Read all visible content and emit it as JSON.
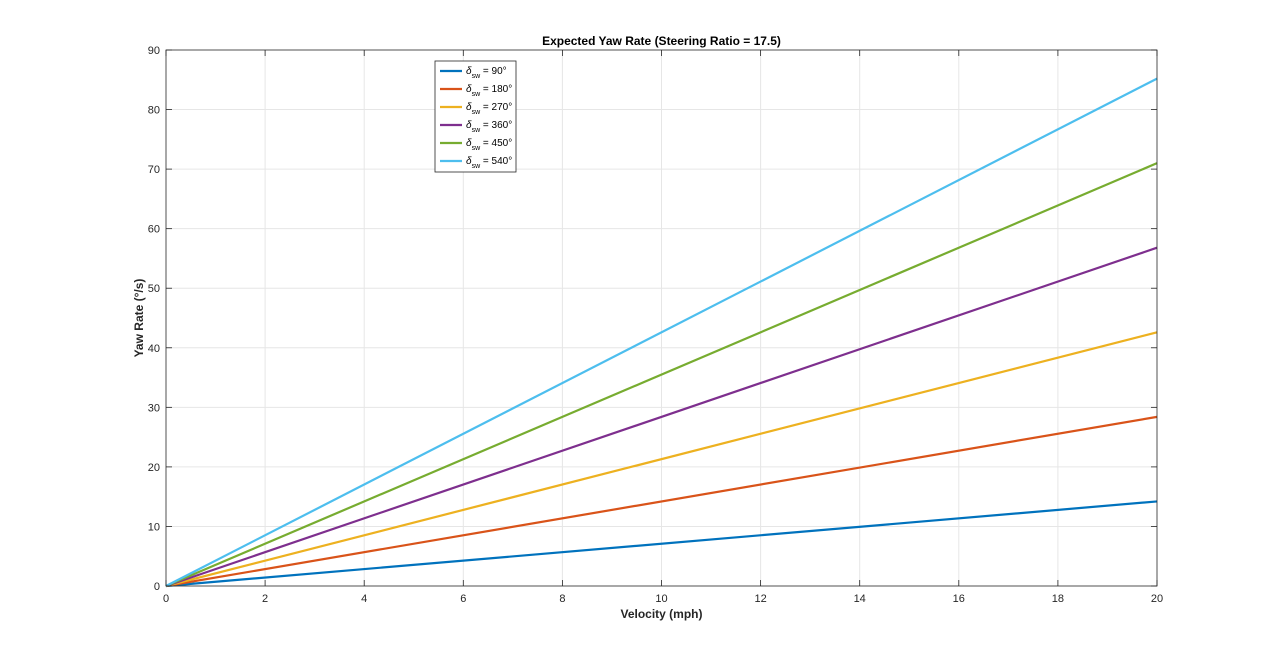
{
  "chart_data": {
    "type": "line",
    "title": "Expected Yaw Rate (Steering Ratio = 17.5)",
    "xlabel": "Velocity (mph)",
    "ylabel": "Yaw Rate (°/s)",
    "xlim": [
      0,
      20
    ],
    "ylim": [
      0,
      90
    ],
    "xticks": [
      0,
      2,
      4,
      6,
      8,
      10,
      12,
      14,
      16,
      18,
      20
    ],
    "yticks": [
      0,
      10,
      20,
      30,
      40,
      50,
      60,
      70,
      80,
      90
    ],
    "grid": true,
    "legend_position": "top-left-center",
    "series": [
      {
        "name": "90°",
        "legend_symbol": "δ",
        "legend_subscript": "sw",
        "legend_rest": " = 90°",
        "color": "#0072BD",
        "x": [
          0,
          20
        ],
        "y": [
          0,
          14.2
        ]
      },
      {
        "name": "180°",
        "legend_symbol": "δ",
        "legend_subscript": "sw",
        "legend_rest": " = 180°",
        "color": "#D95319",
        "x": [
          0,
          20
        ],
        "y": [
          0,
          28.4
        ]
      },
      {
        "name": "270°",
        "legend_symbol": "δ",
        "legend_subscript": "sw",
        "legend_rest": " = 270°",
        "color": "#EDB120",
        "x": [
          0,
          20
        ],
        "y": [
          0,
          42.6
        ]
      },
      {
        "name": "360°",
        "legend_symbol": "δ",
        "legend_subscript": "sw",
        "legend_rest": " = 360°",
        "color": "#7E2F8E",
        "x": [
          0,
          20
        ],
        "y": [
          0,
          56.8
        ]
      },
      {
        "name": "450°",
        "legend_symbol": "δ",
        "legend_subscript": "sw",
        "legend_rest": " = 450°",
        "color": "#77AC30",
        "x": [
          0,
          20
        ],
        "y": [
          0,
          71.0
        ]
      },
      {
        "name": "540°",
        "legend_symbol": "δ",
        "legend_subscript": "sw",
        "legend_rest": " = 540°",
        "color": "#4DBEEE",
        "x": [
          0,
          20
        ],
        "y": [
          0,
          85.2
        ]
      }
    ]
  }
}
